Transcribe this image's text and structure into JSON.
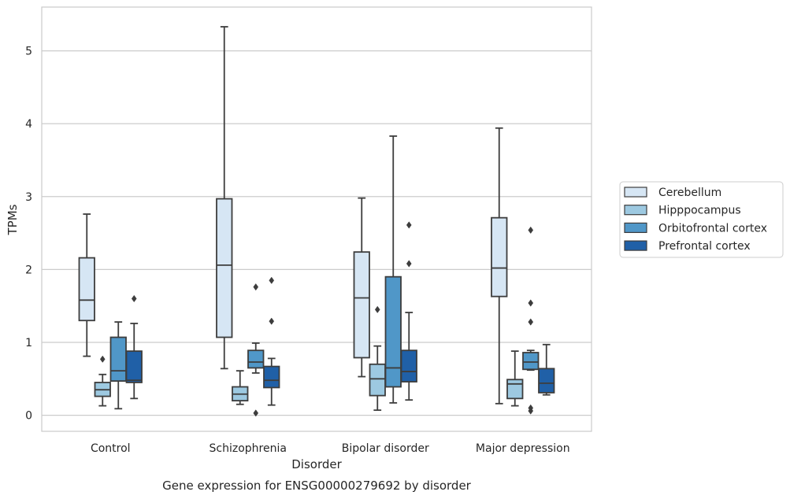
{
  "caption": "Gene expression for ENSG00000279692 by disorder",
  "chart_data": {
    "type": "box",
    "title": "",
    "xlabel": "Disorder",
    "ylabel": "TPMs",
    "ylim": [
      -0.22,
      5.6
    ],
    "yticks": [
      0,
      1,
      2,
      3,
      4,
      5
    ],
    "grid": "horizontal",
    "legend_position": "right",
    "categories": [
      "Control",
      "Schizophrenia",
      "Bipolar disorder",
      "Major depression"
    ],
    "series": [
      {
        "name": "Cerebellum",
        "color": "#d6e6f4",
        "boxes": [
          {
            "whislo": 0.81,
            "q1": 1.3,
            "med": 1.58,
            "q3": 2.16,
            "whishi": 2.76,
            "fliers": []
          },
          {
            "whislo": 0.64,
            "q1": 1.07,
            "med": 2.06,
            "q3": 2.97,
            "whishi": 5.33,
            "fliers": []
          },
          {
            "whislo": 0.53,
            "q1": 0.79,
            "med": 1.61,
            "q3": 2.24,
            "whishi": 2.98,
            "fliers": []
          },
          {
            "whislo": 0.16,
            "q1": 1.63,
            "med": 2.02,
            "q3": 2.71,
            "whishi": 3.94,
            "fliers": []
          }
        ]
      },
      {
        "name": "Hipppocampus",
        "color": "#9dc9e1",
        "boxes": [
          {
            "whislo": 0.13,
            "q1": 0.26,
            "med": 0.35,
            "q3": 0.45,
            "whishi": 0.56,
            "fliers": [
              0.77
            ]
          },
          {
            "whislo": 0.15,
            "q1": 0.2,
            "med": 0.29,
            "q3": 0.39,
            "whishi": 0.61,
            "fliers": []
          },
          {
            "whislo": 0.07,
            "q1": 0.27,
            "med": 0.5,
            "q3": 0.7,
            "whishi": 0.95,
            "fliers": [
              1.45
            ]
          },
          {
            "whislo": 0.13,
            "q1": 0.23,
            "med": 0.43,
            "q3": 0.49,
            "whishi": 0.88,
            "fliers": []
          }
        ]
      },
      {
        "name": "Orbitofrontal cortex",
        "color": "#5097c8",
        "boxes": [
          {
            "whislo": 0.09,
            "q1": 0.47,
            "med": 0.61,
            "q3": 1.07,
            "whishi": 1.28,
            "fliers": []
          },
          {
            "whislo": 0.58,
            "q1": 0.65,
            "med": 0.73,
            "q3": 0.89,
            "whishi": 0.99,
            "fliers": [
              0.03,
              1.76
            ]
          },
          {
            "whislo": 0.17,
            "q1": 0.39,
            "med": 0.65,
            "q3": 1.9,
            "whishi": 3.83,
            "fliers": []
          },
          {
            "whislo": 0.62,
            "q1": 0.63,
            "med": 0.73,
            "q3": 0.86,
            "whishi": 0.89,
            "fliers": [
              0.06,
              0.1,
              1.28,
              1.54,
              2.54
            ]
          }
        ]
      },
      {
        "name": "Prefrontal cortex",
        "color": "#2060a7",
        "boxes": [
          {
            "whislo": 0.23,
            "q1": 0.45,
            "med": 0.48,
            "q3": 0.88,
            "whishi": 1.26,
            "fliers": [
              1.6
            ]
          },
          {
            "whislo": 0.14,
            "q1": 0.38,
            "med": 0.48,
            "q3": 0.67,
            "whishi": 0.78,
            "fliers": [
              1.29,
              1.85
            ]
          },
          {
            "whislo": 0.21,
            "q1": 0.46,
            "med": 0.6,
            "q3": 0.89,
            "whishi": 1.41,
            "fliers": [
              2.08,
              2.61
            ]
          },
          {
            "whislo": 0.28,
            "q1": 0.31,
            "med": 0.44,
            "q3": 0.64,
            "whishi": 0.97,
            "fliers": []
          }
        ]
      }
    ]
  }
}
